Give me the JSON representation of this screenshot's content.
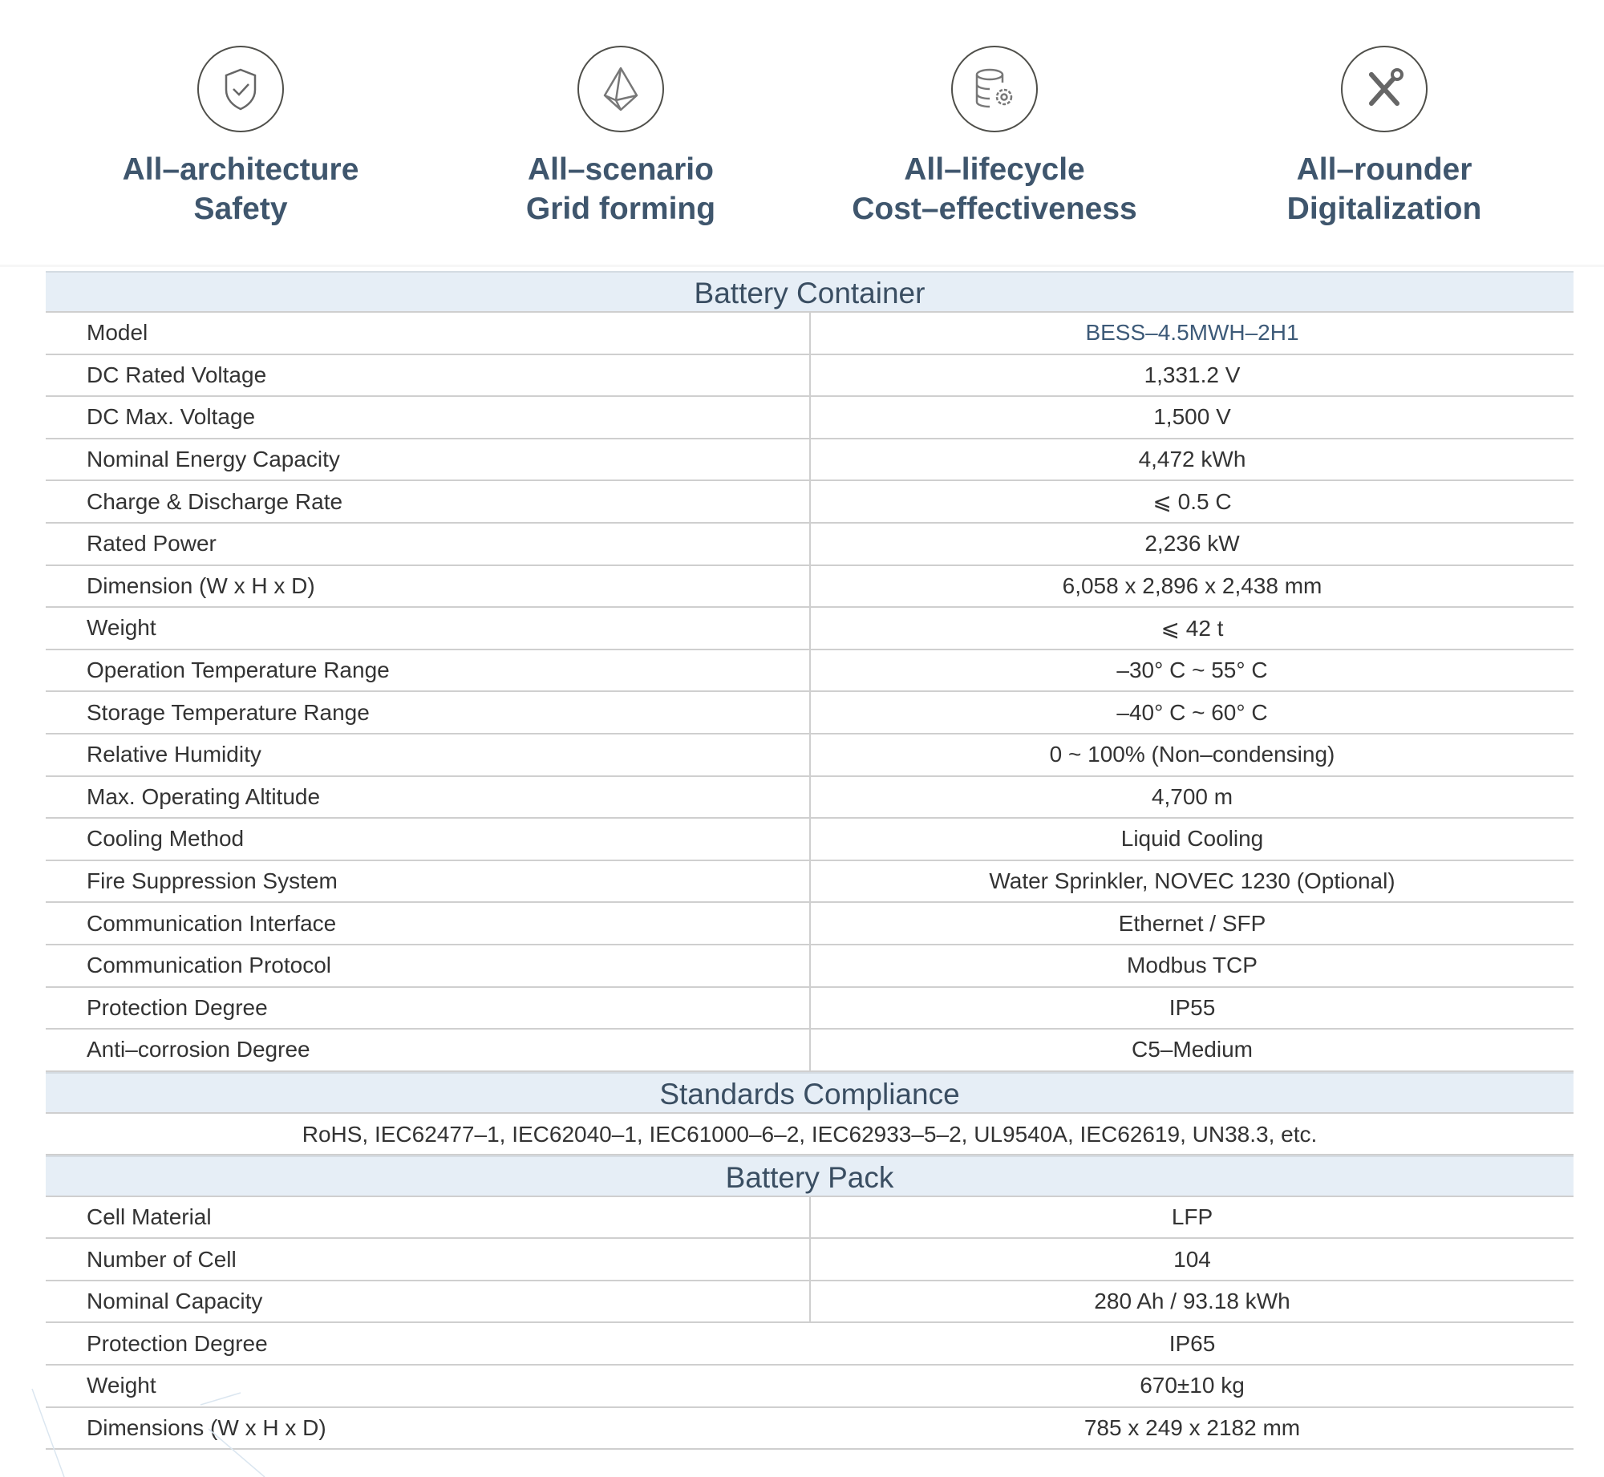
{
  "features": [
    {
      "icon": "shield-check-icon",
      "line1": "All–architecture",
      "line2": "Safety"
    },
    {
      "icon": "pyramid-icon",
      "line1": "All–scenario",
      "line2": "Grid forming"
    },
    {
      "icon": "database-gear-icon",
      "line1": "All–lifecycle",
      "line2": "Cost–effectiveness"
    },
    {
      "icon": "tools-icon",
      "line1": "All–rounder",
      "line2": "Digitalization"
    }
  ],
  "battery_container": {
    "title": "Battery Container",
    "rows": [
      {
        "label": "Model",
        "value": "BESS–4.5MWH–2H1"
      },
      {
        "label": "DC Rated Voltage",
        "value": "1,331.2 V"
      },
      {
        "label": "DC Max. Voltage",
        "value": "1,500 V"
      },
      {
        "label": "Nominal Energy Capacity",
        "value": "4,472 kWh"
      },
      {
        "label": "Charge & Discharge Rate",
        "value": "⩽ 0.5 C"
      },
      {
        "label": "Rated Power",
        "value": "2,236 kW"
      },
      {
        "label": "Dimension (W x H x D)",
        "value": "6,058 x 2,896 x 2,438 mm"
      },
      {
        "label": "Weight",
        "value": "⩽ 42 t"
      },
      {
        "label": "Operation Temperature Range",
        "value": "–30° C ~ 55° C"
      },
      {
        "label": "Storage Temperature Range",
        "value": "–40° C ~ 60° C"
      },
      {
        "label": "Relative Humidity",
        "value": "0 ~ 100% (Non–condensing)"
      },
      {
        "label": "Max. Operating Altitude",
        "value": "4,700 m"
      },
      {
        "label": "Cooling Method",
        "value": "Liquid Cooling"
      },
      {
        "label": "Fire Suppression System",
        "value": "Water Sprinkler, NOVEC 1230 (Optional)"
      },
      {
        "label": "Communication Interface",
        "value": "Ethernet / SFP"
      },
      {
        "label": "Communication Protocol",
        "value": "Modbus TCP"
      },
      {
        "label": "Protection Degree",
        "value": "IP55"
      },
      {
        "label": "Anti–corrosion Degree",
        "value": "C5–Medium"
      }
    ]
  },
  "standards": {
    "title": "Standards Compliance",
    "text": "RoHS, IEC62477–1, IEC62040–1, IEC61000–6–2, IEC62933–5–2, UL9540A,  IEC62619, UN38.3, etc."
  },
  "battery_pack": {
    "title": "Battery Pack",
    "rows": [
      {
        "label": "Cell Material",
        "value": "LFP"
      },
      {
        "label": "Number of Cell",
        "value": "104"
      },
      {
        "label": "Nominal Capacity",
        "value": "280 Ah / 93.18 kWh"
      },
      {
        "label": "Protection Degree",
        "value": "IP65"
      },
      {
        "label": "Weight",
        "value": "670±10 kg"
      },
      {
        "label": "Dimensions (W x H x D)",
        "value": "785 x 249 x 2182 mm"
      }
    ]
  },
  "colors": {
    "title": "#3f566d",
    "section_bg": "#e6eef6",
    "border": "#cfcfcf",
    "model_value": "#3d5a78"
  }
}
